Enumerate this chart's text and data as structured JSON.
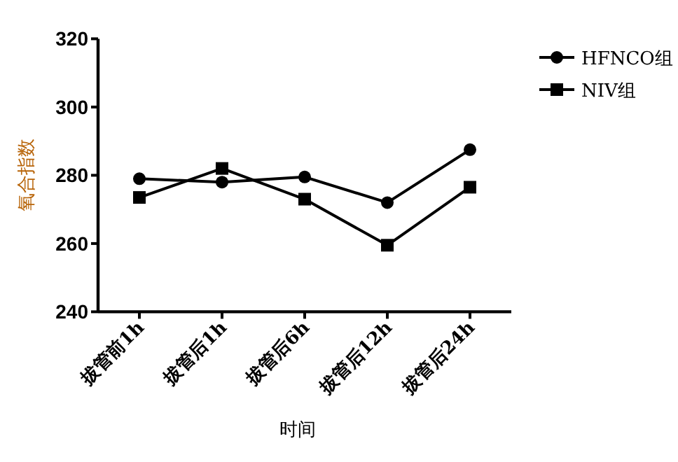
{
  "chart_data": {
    "type": "line",
    "xlabel": "时间",
    "ylabel": "氧合指数",
    "categories": [
      "拔管前1h",
      "拔管后1h",
      "拔管后6h",
      "拔管后12h",
      "拔管后24h"
    ],
    "series": [
      {
        "name": "HFNCO组",
        "color": "#000000",
        "marker": "circle",
        "values": [
          279,
          278,
          279.5,
          272,
          287.5
        ]
      },
      {
        "name": "NIV组",
        "color": "#000000",
        "marker": "square",
        "values": [
          273.5,
          282,
          273,
          259.5,
          276.5
        ]
      }
    ],
    "ylim": [
      240,
      320
    ],
    "yticks": [
      240,
      260,
      280,
      300,
      320
    ],
    "grid": false,
    "legend": "top right"
  }
}
